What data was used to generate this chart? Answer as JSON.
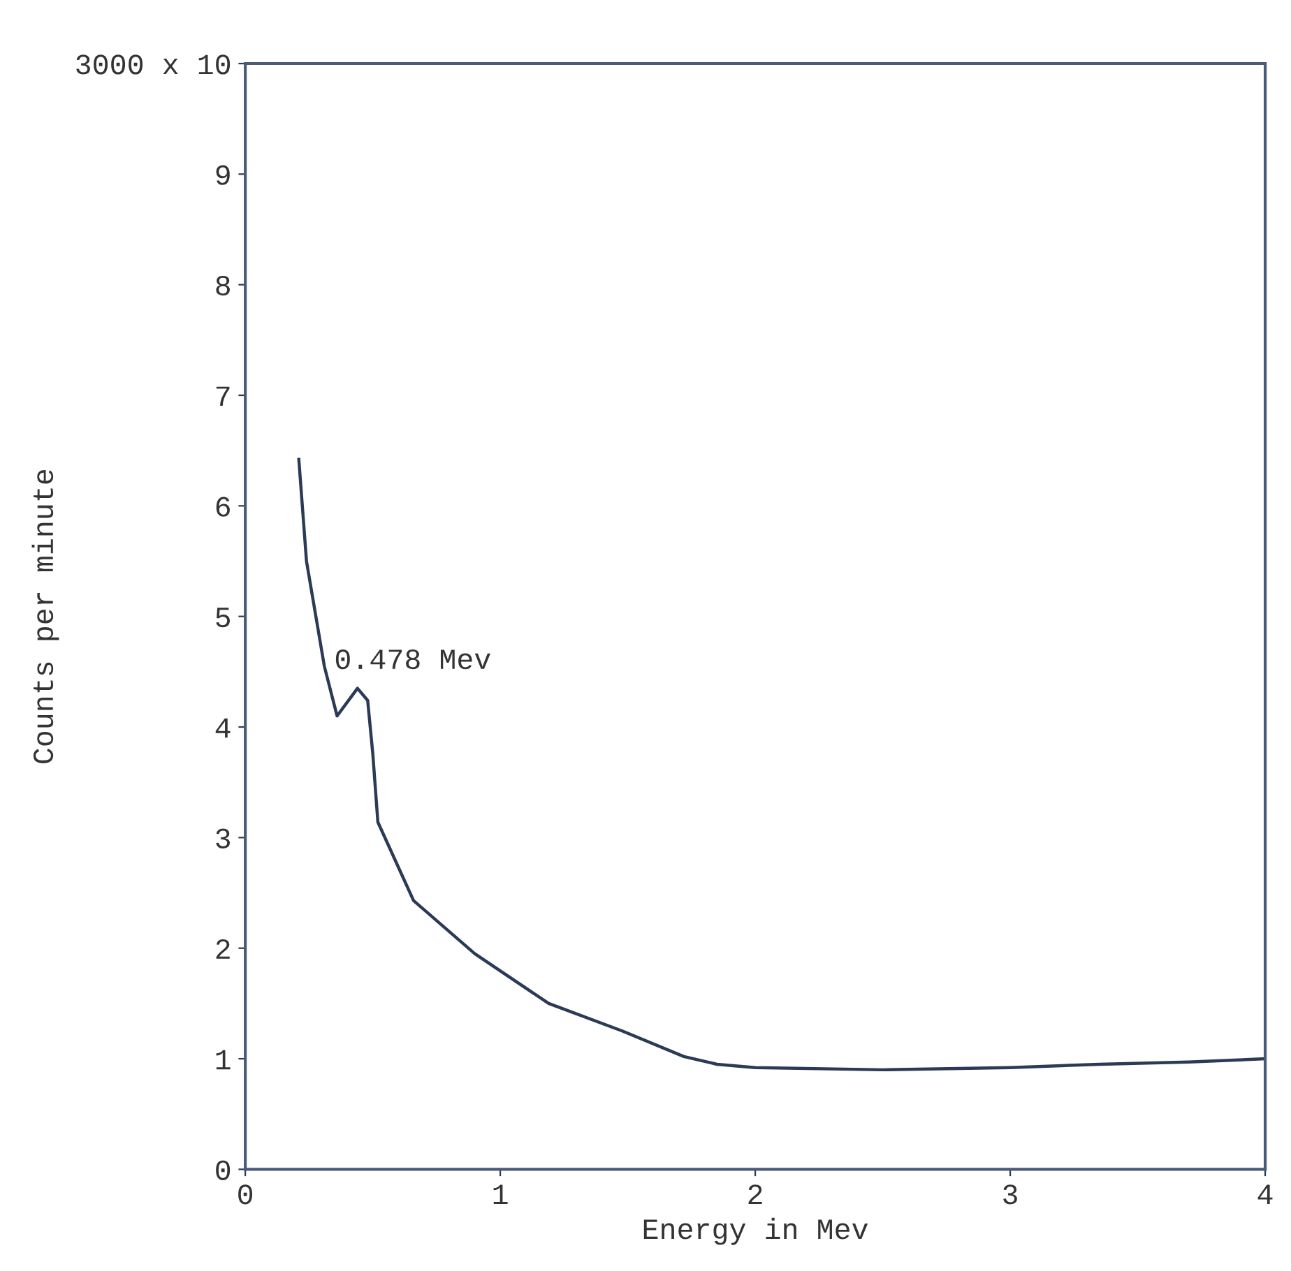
{
  "chart_data": {
    "type": "line",
    "xlabel": "Energy in Mev",
    "ylabel": "Counts per minute",
    "annotations": [
      {
        "text": "0.478 Mev",
        "x": 0.44,
        "y": 4.35
      }
    ],
    "x": [
      0.21,
      0.24,
      0.31,
      0.36,
      0.44,
      0.48,
      0.5,
      0.52,
      0.66,
      0.9,
      1.19,
      1.48,
      1.72,
      1.85,
      2.0,
      2.5,
      3.0,
      3.35,
      3.7,
      4.0
    ],
    "series": [
      {
        "color": "#2b3a55",
        "values": [
          6.42,
          5.5,
          4.55,
          4.1,
          4.35,
          4.24,
          3.76,
          3.14,
          2.43,
          1.95,
          1.5,
          1.25,
          1.02,
          0.95,
          0.92,
          0.9,
          0.92,
          0.95,
          0.97,
          1.0
        ]
      }
    ],
    "xlim": [
      0,
      4
    ],
    "ylim": [
      0,
      10
    ],
    "xticks": [
      0,
      1,
      2,
      3,
      4
    ],
    "yticks": [
      0,
      1,
      2,
      3,
      4,
      5,
      6,
      7,
      8,
      9,
      {
        "value": 10,
        "label": "3000 x 10"
      }
    ],
    "grid": false,
    "legend": false,
    "marker": "none",
    "line_style": "solid"
  }
}
